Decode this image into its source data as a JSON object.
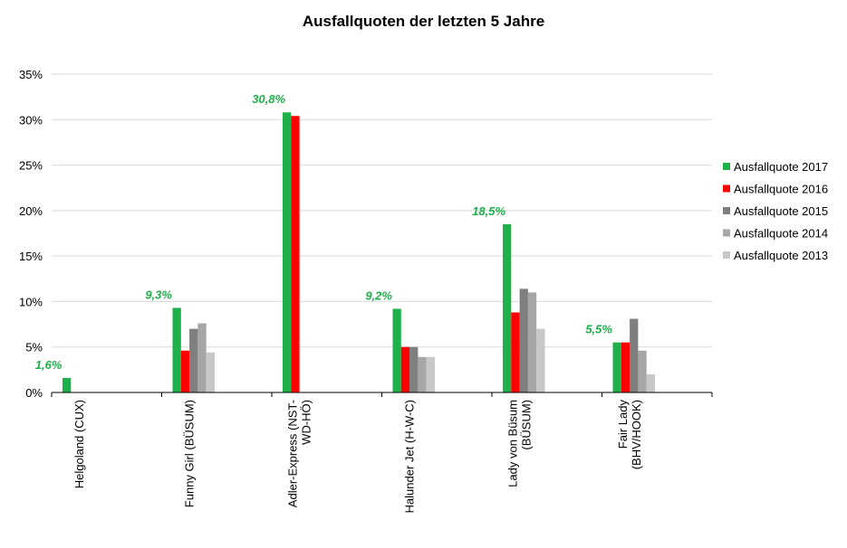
{
  "chart_data": {
    "type": "bar",
    "title": "Ausfallquoten  der letzten 5 Jahre",
    "xlabel": "",
    "ylabel": "",
    "ylim": [
      0,
      35
    ],
    "y_ticks": [
      "0%",
      "5%",
      "10%",
      "15%",
      "20%",
      "25%",
      "30%",
      "35%"
    ],
    "y_tick_values": [
      0,
      5,
      10,
      15,
      20,
      25,
      30,
      35
    ],
    "grid": true,
    "legend_position": "right",
    "categories": [
      [
        "Helgoland (CUX)"
      ],
      [
        "Funny Girl (BÜSUM)"
      ],
      [
        "Adler-Express (NST-",
        "WD-HÖ)"
      ],
      [
        "Halunder Jet (H-W-C)"
      ],
      [
        "Lady von Büsum",
        "(BÜSUM)"
      ],
      [
        "Fair Lady",
        "(BHV/HOOK)"
      ]
    ],
    "series": [
      {
        "name": "Ausfallquote 2017",
        "color": "#1fb04c",
        "values": [
          1.6,
          9.3,
          30.8,
          9.2,
          18.5,
          5.5
        ]
      },
      {
        "name": "Ausfallquote 2016",
        "color": "#ff0000",
        "values": [
          0,
          4.6,
          30.4,
          5.0,
          8.8,
          5.5
        ]
      },
      {
        "name": "Ausfallquote 2015",
        "color": "#7f7f7f",
        "values": [
          0,
          7.0,
          0,
          5.0,
          11.4,
          8.1
        ]
      },
      {
        "name": "Ausfallquote 2014",
        "color": "#a6a6a6",
        "values": [
          0,
          7.6,
          0,
          3.9,
          11.0,
          4.6
        ]
      },
      {
        "name": "Ausfallquote 2013",
        "color": "#c8c8c8",
        "values": [
          0,
          4.4,
          0,
          3.9,
          7.0,
          2.0
        ]
      }
    ],
    "data_labels": [
      "1,6%",
      "9,3%",
      "30,8%",
      "9,2%",
      "18,5%",
      "5,5%"
    ]
  }
}
